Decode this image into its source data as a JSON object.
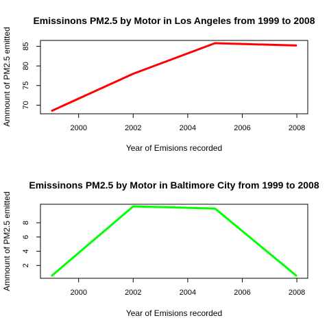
{
  "chart_data": [
    {
      "type": "line",
      "title": "Emissinons PM2.5 by Motor in Los Angeles from 1999 to 2008",
      "xlabel": "Year of Emisions recorded",
      "ylabel": "Ammount of PM2.5 emitted",
      "x": [
        1999,
        2002,
        2005,
        2008
      ],
      "series": [
        {
          "values": [
            68.5,
            78.0,
            85.8,
            85.2
          ],
          "color": "#ff0000"
        }
      ],
      "xlim": [
        1998.6,
        2008.4
      ],
      "ylim": [
        67.8,
        86.5
      ],
      "xticks": [
        "2000",
        "2002",
        "2004",
        "2006",
        "2008"
      ],
      "yticks": [
        "70",
        "75",
        "80",
        "85"
      ],
      "grid": false
    },
    {
      "type": "line",
      "title": "Emissinons PM2.5 by Motor in Baltimore City from 1999 to 2008",
      "xlabel": "Year of Emisions recorded",
      "ylabel": "Ammount of PM2.5 emitted",
      "x": [
        1999,
        2002,
        2005,
        2008
      ],
      "series": [
        {
          "values": [
            0.5,
            10.3,
            10.0,
            0.5
          ],
          "color": "#00ff00"
        }
      ],
      "xlim": [
        1998.6,
        2008.4
      ],
      "ylim": [
        0.2,
        10.6
      ],
      "xticks": [
        "2000",
        "2002",
        "2004",
        "2006",
        "2008"
      ],
      "yticks": [
        "2",
        "4",
        "6",
        "8"
      ],
      "grid": false
    }
  ]
}
